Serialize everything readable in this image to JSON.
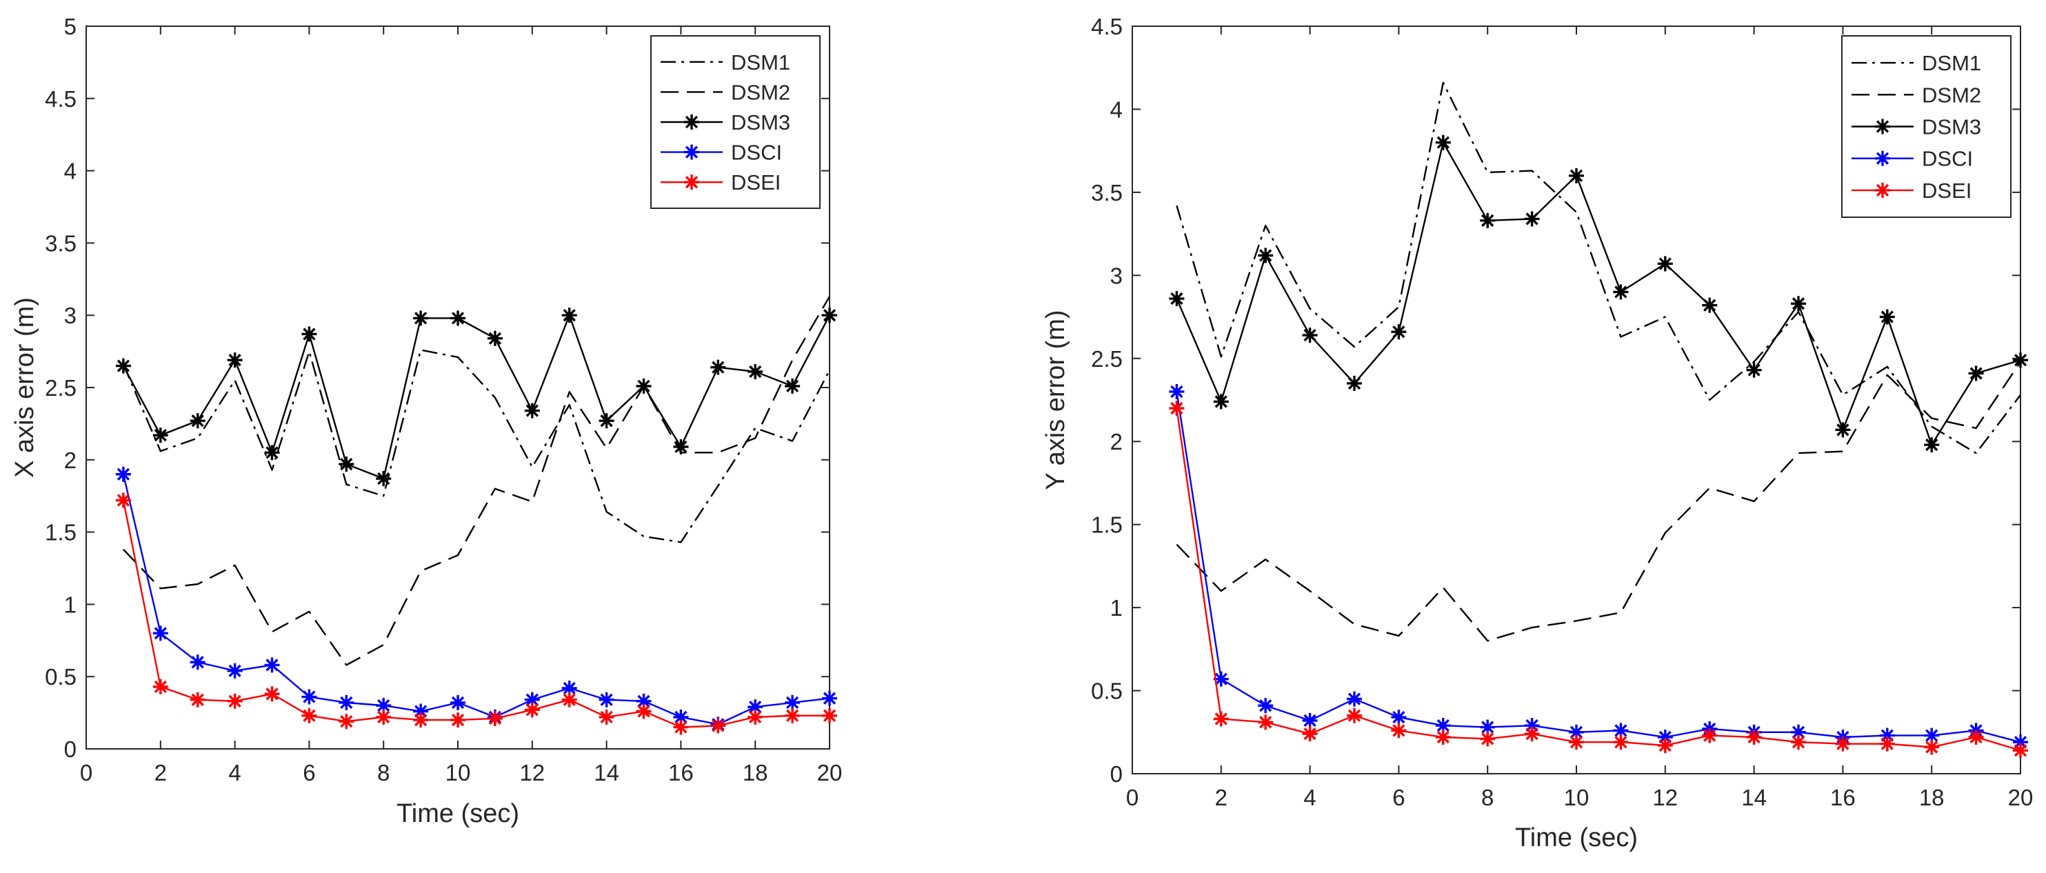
{
  "charts": [
    {
      "type": "line",
      "xlabel": "Time (sec)",
      "ylabel": "X axis error (m)",
      "xlim": [
        0,
        20
      ],
      "ylim": [
        0,
        5
      ],
      "xticks": [
        "0",
        "2",
        "4",
        "6",
        "8",
        "10",
        "12",
        "14",
        "16",
        "18",
        "20"
      ],
      "yticks": [
        "0",
        "0.5",
        "1",
        "1.5",
        "2",
        "2.5",
        "3",
        "3.5",
        "4",
        "4.5",
        "5"
      ],
      "legend_position": "top-right",
      "x": [
        1,
        2,
        3,
        4,
        5,
        6,
        7,
        8,
        9,
        10,
        11,
        12,
        13,
        14,
        15,
        16,
        17,
        18,
        19,
        20
      ],
      "series": [
        {
          "name": "DSM1",
          "line_style": "dashdot",
          "marker": "none",
          "color": "#000000",
          "values": [
            2.66,
            2.06,
            2.15,
            2.55,
            1.93,
            2.75,
            1.83,
            1.75,
            2.76,
            2.71,
            2.43,
            1.95,
            2.38,
            1.64,
            1.47,
            1.43,
            1.82,
            2.22,
            2.13,
            2.62
          ]
        },
        {
          "name": "DSM2",
          "line_style": "dashed",
          "marker": "none",
          "color": "#000000",
          "values": [
            1.38,
            1.11,
            1.14,
            1.27,
            0.81,
            0.95,
            0.58,
            0.72,
            1.23,
            1.34,
            1.8,
            1.71,
            2.47,
            2.08,
            2.51,
            2.05,
            2.05,
            2.15,
            2.69,
            3.13
          ]
        },
        {
          "name": "DSM3",
          "line_style": "solid",
          "marker": "asterisk",
          "color": "#000000",
          "values": [
            2.65,
            2.17,
            2.27,
            2.69,
            2.05,
            2.87,
            1.97,
            1.87,
            2.98,
            2.98,
            2.84,
            2.34,
            3.0,
            2.27,
            2.51,
            2.09,
            2.64,
            2.61,
            2.51,
            3.0
          ]
        },
        {
          "name": "DSCI",
          "line_style": "solid",
          "marker": "asterisk",
          "color": "#0000ff",
          "values": [
            1.9,
            0.8,
            0.6,
            0.54,
            0.58,
            0.36,
            0.32,
            0.3,
            0.26,
            0.32,
            0.22,
            0.34,
            0.42,
            0.34,
            0.33,
            0.22,
            0.17,
            0.29,
            0.32,
            0.35
          ]
        },
        {
          "name": "DSEI",
          "line_style": "solid",
          "marker": "asterisk",
          "color": "#ff0000",
          "values": [
            1.72,
            0.43,
            0.34,
            0.33,
            0.38,
            0.23,
            0.19,
            0.22,
            0.2,
            0.2,
            0.21,
            0.27,
            0.34,
            0.22,
            0.26,
            0.15,
            0.16,
            0.22,
            0.23,
            0.23
          ]
        }
      ]
    },
    {
      "type": "line",
      "xlabel": "Time (sec)",
      "ylabel": "Y axis error (m)",
      "xlim": [
        0,
        20
      ],
      "ylim": [
        0,
        4.5
      ],
      "xticks": [
        "0",
        "2",
        "4",
        "6",
        "8",
        "10",
        "12",
        "14",
        "16",
        "18",
        "20"
      ],
      "yticks": [
        "0",
        "0.5",
        "1",
        "1.5",
        "2",
        "2.5",
        "3",
        "3.5",
        "4",
        "4.5"
      ],
      "legend_position": "top-right",
      "x": [
        1,
        2,
        3,
        4,
        5,
        6,
        7,
        8,
        9,
        10,
        11,
        12,
        13,
        14,
        15,
        16,
        17,
        18,
        19,
        20
      ],
      "series": [
        {
          "name": "DSM1",
          "line_style": "dashdot",
          "marker": "none",
          "color": "#000000",
          "values": [
            3.42,
            2.51,
            3.3,
            2.8,
            2.57,
            2.81,
            4.16,
            3.62,
            3.63,
            3.38,
            2.63,
            2.75,
            2.25,
            2.48,
            2.78,
            2.28,
            2.45,
            2.09,
            1.93,
            2.28
          ]
        },
        {
          "name": "DSM2",
          "line_style": "dashed",
          "marker": "none",
          "color": "#000000",
          "values": [
            1.38,
            1.1,
            1.29,
            1.1,
            0.9,
            0.83,
            1.12,
            0.8,
            0.88,
            0.92,
            0.97,
            1.45,
            1.72,
            1.64,
            1.93,
            1.94,
            2.4,
            2.14,
            2.08,
            2.48
          ]
        },
        {
          "name": "DSM3",
          "line_style": "solid",
          "marker": "asterisk",
          "color": "#000000",
          "values": [
            2.86,
            2.24,
            3.12,
            2.64,
            2.35,
            2.66,
            3.8,
            3.33,
            3.34,
            3.6,
            2.9,
            3.07,
            2.82,
            2.43,
            2.83,
            2.07,
            2.75,
            1.98,
            2.41,
            2.49
          ]
        },
        {
          "name": "DSCI",
          "line_style": "solid",
          "marker": "asterisk",
          "color": "#0000ff",
          "values": [
            2.3,
            0.57,
            0.41,
            0.32,
            0.45,
            0.34,
            0.29,
            0.28,
            0.29,
            0.25,
            0.26,
            0.22,
            0.27,
            0.25,
            0.25,
            0.22,
            0.23,
            0.23,
            0.26,
            0.19
          ]
        },
        {
          "name": "DSEI",
          "line_style": "solid",
          "marker": "asterisk",
          "color": "#ff0000",
          "values": [
            2.2,
            0.33,
            0.31,
            0.24,
            0.35,
            0.26,
            0.22,
            0.21,
            0.24,
            0.19,
            0.19,
            0.17,
            0.23,
            0.22,
            0.19,
            0.18,
            0.18,
            0.16,
            0.22,
            0.14
          ]
        }
      ]
    }
  ]
}
